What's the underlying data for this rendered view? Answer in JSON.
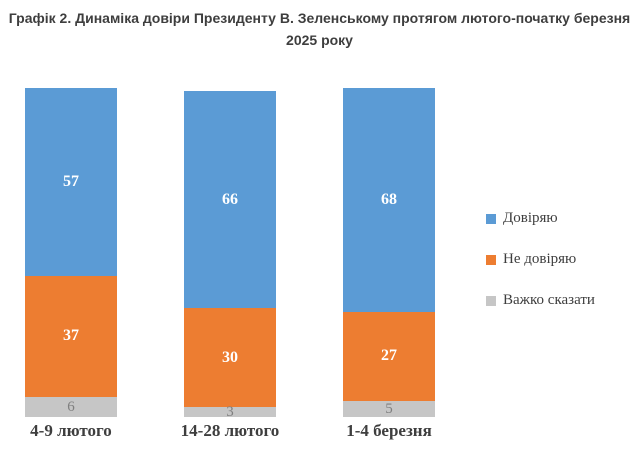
{
  "title": "Графік 2. Динаміка довіри Президенту В. Зеленському протягом лютого-початку березня 2025 року",
  "chart_data": {
    "type": "bar",
    "stacked": true,
    "orientation": "vertical",
    "categories": [
      "4-9 лютого",
      "14-28 лютого",
      "1-4 березня"
    ],
    "series": [
      {
        "name": "Довіряю",
        "color": "#5b9bd5",
        "values": [
          57,
          66,
          68
        ]
      },
      {
        "name": "Не довіряю",
        "color": "#ed7d31",
        "values": [
          37,
          30,
          27
        ]
      },
      {
        "name": "Важко сказати",
        "color": "#c6c6c6",
        "values": [
          6,
          3,
          5
        ]
      }
    ],
    "value_labels_shown": true,
    "legend_position": "right",
    "grid": false,
    "axes_shown": false,
    "ylim": [
      0,
      100
    ],
    "value_unit": "percent"
  },
  "colors": {
    "background": "#ffffff",
    "title_text": "#3e3e3e",
    "category_text": "#3e3e3e",
    "bar_value_text": "#ffffff",
    "gray_value_text": "#7f7f7f"
  }
}
